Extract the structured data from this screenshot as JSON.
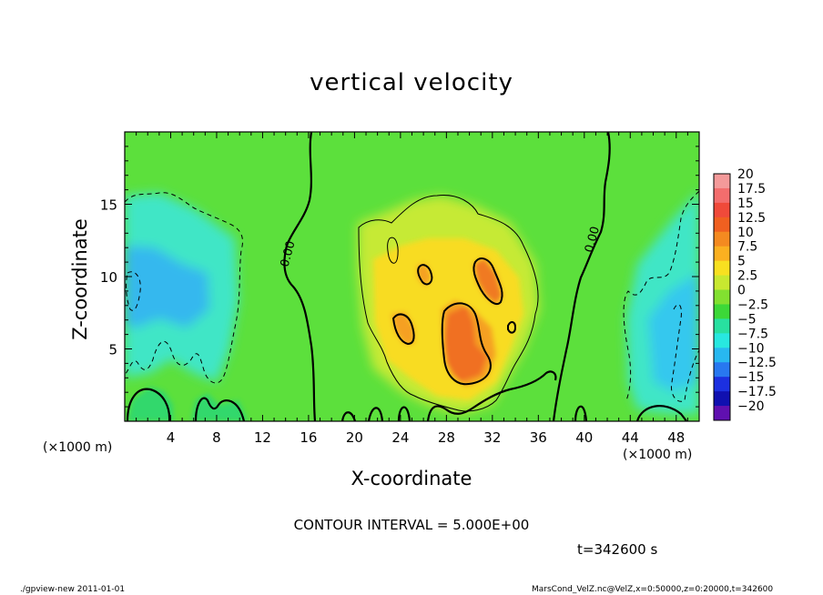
{
  "chart_data": {
    "type": "heatmap",
    "title": "vertical velocity",
    "xlabel": "X-coordinate",
    "ylabel": "Z-coordinate",
    "x_unit_label_left": "(×1000 m)",
    "x_unit_label_right": "(×1000 m)",
    "xlim": [
      0,
      50
    ],
    "ylim": [
      0,
      20
    ],
    "x_ticks": [
      4,
      8,
      12,
      16,
      20,
      24,
      28,
      32,
      36,
      40,
      44,
      48
    ],
    "y_ticks": [
      5,
      10,
      15
    ],
    "colorbar": {
      "levels": [
        20,
        17.5,
        15,
        12.5,
        10,
        7.5,
        5,
        2.5,
        0,
        -2.5,
        -5,
        -7.5,
        -10,
        -12.5,
        -15,
        -17.5,
        -20
      ],
      "level_labels": [
        "20",
        "17.5",
        "15",
        "12.5",
        "10",
        "7.5",
        "5",
        "2.5",
        "0",
        "−2.5",
        "−5",
        "−7.5",
        "−10",
        "−12.5",
        "−15",
        "−17.5",
        "−20"
      ],
      "colors": [
        "#f49a9a",
        "#f36d6d",
        "#f04a3a",
        "#f06020",
        "#f48a20",
        "#fbb020",
        "#f8e020",
        "#c8e830",
        "#82e030",
        "#3cd838",
        "#28e0a0",
        "#28e8e0",
        "#28b8f0",
        "#2878f0",
        "#1c30e0",
        "#1010b0",
        "#6010b0"
      ]
    },
    "contour_labels": [
      {
        "text": "0.00",
        "x": 14.5,
        "z": 11.5
      },
      {
        "text": "0.00",
        "x": 41,
        "z": 12.5
      }
    ],
    "contour_interval": 5.0,
    "features": [
      {
        "kind": "updraft",
        "x_range": [
          24,
          35
        ],
        "z_range": [
          3,
          13
        ],
        "peak_w": 10
      },
      {
        "kind": "downdraft",
        "x_range": [
          0,
          10
        ],
        "z_range": [
          3,
          16
        ],
        "min_w": -7.5
      },
      {
        "kind": "downdraft",
        "x_range": [
          43,
          50
        ],
        "z_range": [
          2,
          13
        ],
        "min_w": -7.5
      }
    ]
  },
  "labels": {
    "contour_interval": "CONTOUR INTERVAL = 5.000E+00",
    "time": "t=342600 s",
    "footer_left": "./gpview-new   2011-01-01",
    "footer_right": "MarsCond_VelZ.nc@VelZ,x=0:50000,z=0:20000,t=342600"
  }
}
